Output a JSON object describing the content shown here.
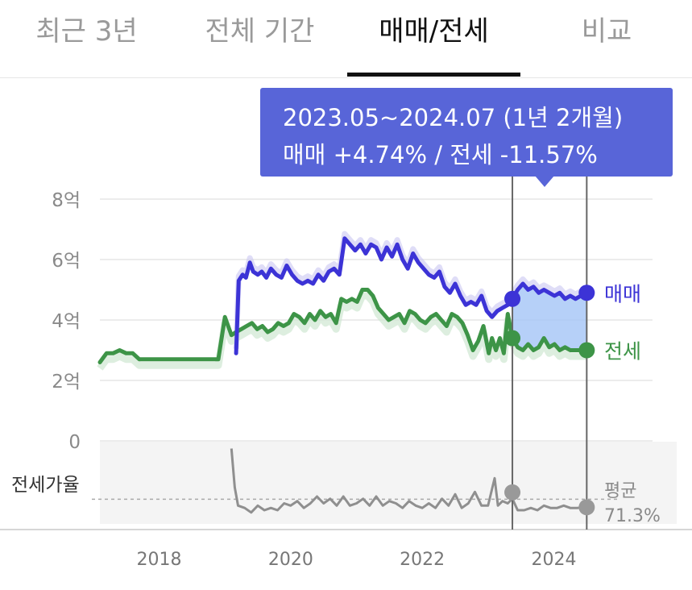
{
  "tabs": [
    {
      "label": "최근 3년",
      "active": false
    },
    {
      "label": "전체 기간",
      "active": false
    },
    {
      "label": "매매/전세",
      "active": true
    },
    {
      "label": "비교",
      "active": false
    }
  ],
  "tooltip": {
    "period": "2023.05~2024.07 (1년 2개월)",
    "change": "매매 +4.74%  /  전세 -11.57%"
  },
  "colors": {
    "sale": "#3c33d6",
    "jeonse": "#3d9447",
    "ratio": "#8f8f8f",
    "accent": "#5865d8",
    "highlight": "#9ec0f5"
  },
  "chart_data": {
    "type": "line",
    "x_range": [
      2017.1,
      2025.5
    ],
    "xticks": [
      "2018",
      "2020",
      "2022",
      "2024"
    ],
    "xtick_values": [
      2018,
      2020,
      2022,
      2024
    ],
    "ylim": [
      0,
      8
    ],
    "yticks": [
      "0",
      "2억",
      "4억",
      "6억",
      "8억"
    ],
    "ytick_values": [
      0,
      2,
      4,
      6,
      8
    ],
    "grid": true,
    "selection": {
      "start": 2023.37,
      "end": 2024.5
    },
    "series": [
      {
        "key": "sale",
        "name": "매매",
        "x": [
          2019.17,
          2019.21,
          2019.27,
          2019.32,
          2019.38,
          2019.43,
          2019.5,
          2019.56,
          2019.63,
          2019.7,
          2019.78,
          2019.86,
          2019.94,
          2020.02,
          2020.1,
          2020.18,
          2020.26,
          2020.34,
          2020.42,
          2020.5,
          2020.58,
          2020.66,
          2020.74,
          2020.82,
          2020.9,
          2020.98,
          2021.06,
          2021.14,
          2021.22,
          2021.3,
          2021.38,
          2021.46,
          2021.54,
          2021.62,
          2021.7,
          2021.78,
          2021.86,
          2021.94,
          2022.02,
          2022.1,
          2022.18,
          2022.26,
          2022.34,
          2022.42,
          2022.5,
          2022.58,
          2022.66,
          2022.74,
          2022.82,
          2022.9,
          2022.98,
          2023.06,
          2023.14,
          2023.22,
          2023.3,
          2023.37,
          2023.45,
          2023.53,
          2023.61,
          2023.69,
          2023.77,
          2023.85,
          2023.93,
          2024.01,
          2024.09,
          2024.17,
          2024.25,
          2024.33,
          2024.41,
          2024.5
        ],
        "y": [
          2.9,
          5.3,
          5.5,
          5.4,
          5.9,
          5.6,
          5.5,
          5.6,
          5.4,
          5.7,
          5.5,
          5.4,
          5.8,
          5.5,
          5.3,
          5.2,
          5.3,
          5.2,
          5.5,
          5.3,
          5.6,
          5.7,
          5.5,
          6.7,
          6.5,
          6.3,
          6.5,
          6.2,
          6.5,
          6.4,
          6.0,
          6.4,
          6.1,
          6.5,
          6.0,
          5.7,
          6.2,
          5.9,
          5.7,
          5.5,
          5.4,
          5.6,
          5.1,
          4.9,
          5.2,
          4.8,
          4.5,
          4.6,
          4.5,
          4.8,
          4.3,
          4.1,
          4.3,
          4.4,
          4.5,
          4.7,
          5.0,
          5.2,
          5.0,
          5.1,
          4.9,
          5.0,
          4.9,
          4.8,
          4.9,
          4.7,
          4.8,
          4.7,
          4.8,
          4.9
        ]
      },
      {
        "key": "jeonse",
        "name": "전세",
        "x": [
          2017.1,
          2017.2,
          2017.3,
          2017.4,
          2017.5,
          2017.6,
          2017.7,
          2017.8,
          2017.9,
          2018.0,
          2018.2,
          2018.4,
          2018.6,
          2018.8,
          2018.9,
          2019.0,
          2019.1,
          2019.17,
          2019.25,
          2019.33,
          2019.41,
          2019.49,
          2019.57,
          2019.65,
          2019.73,
          2019.81,
          2019.89,
          2019.97,
          2020.05,
          2020.13,
          2020.21,
          2020.29,
          2020.37,
          2020.45,
          2020.53,
          2020.61,
          2020.69,
          2020.77,
          2020.85,
          2020.93,
          2021.01,
          2021.09,
          2021.17,
          2021.25,
          2021.33,
          2021.41,
          2021.49,
          2021.57,
          2021.65,
          2021.73,
          2021.81,
          2021.89,
          2021.97,
          2022.05,
          2022.13,
          2022.21,
          2022.29,
          2022.37,
          2022.45,
          2022.53,
          2022.61,
          2022.69,
          2022.77,
          2022.85,
          2022.93,
          2023.01,
          2023.06,
          2023.12,
          2023.18,
          2023.24,
          2023.3,
          2023.37,
          2023.45,
          2023.53,
          2023.61,
          2023.69,
          2023.77,
          2023.85,
          2023.93,
          2024.01,
          2024.09,
          2024.17,
          2024.25,
          2024.33,
          2024.41,
          2024.5
        ],
        "y": [
          2.6,
          2.9,
          2.9,
          3.0,
          2.9,
          2.9,
          2.7,
          2.7,
          2.7,
          2.7,
          2.7,
          2.7,
          2.7,
          2.7,
          2.7,
          4.1,
          3.5,
          3.6,
          3.7,
          3.8,
          3.9,
          3.7,
          3.8,
          3.6,
          3.7,
          3.9,
          3.8,
          3.9,
          4.2,
          4.1,
          3.9,
          4.2,
          4.0,
          4.3,
          4.1,
          4.2,
          3.9,
          4.7,
          4.6,
          4.7,
          4.6,
          5.0,
          5.0,
          4.8,
          4.4,
          4.2,
          4.0,
          4.1,
          4.2,
          3.9,
          4.3,
          4.2,
          4.0,
          3.9,
          4.1,
          4.2,
          4.0,
          3.8,
          4.2,
          4.1,
          3.9,
          3.5,
          3.0,
          3.3,
          3.8,
          2.9,
          3.4,
          3.0,
          3.4,
          2.9,
          4.2,
          3.4,
          3.1,
          3.0,
          3.2,
          3.0,
          3.1,
          3.4,
          3.1,
          3.2,
          3.0,
          3.1,
          3.0,
          3.0,
          3.0,
          3.0
        ]
      },
      {
        "key": "ratio",
        "name": "전세가율",
        "x": [
          2019.1,
          2019.15,
          2019.2,
          2019.3,
          2019.4,
          2019.5,
          2019.6,
          2019.7,
          2019.8,
          2019.9,
          2020.0,
          2020.1,
          2020.2,
          2020.3,
          2020.4,
          2020.5,
          2020.6,
          2020.7,
          2020.8,
          2020.9,
          2021.0,
          2021.1,
          2021.2,
          2021.3,
          2021.4,
          2021.5,
          2021.6,
          2021.7,
          2021.8,
          2021.9,
          2022.0,
          2022.1,
          2022.2,
          2022.3,
          2022.4,
          2022.5,
          2022.6,
          2022.7,
          2022.8,
          2022.9,
          2023.0,
          2023.1,
          2023.15,
          2023.22,
          2023.3,
          2023.37,
          2023.45,
          2023.55,
          2023.65,
          2023.75,
          2023.85,
          2023.95,
          2024.05,
          2024.15,
          2024.25,
          2024.35,
          2024.5
        ],
        "y": [
          97,
          80,
          72,
          71,
          69,
          72,
          70,
          71,
          70,
          73,
          72,
          74,
          71,
          73,
          76,
          73,
          75,
          72,
          76,
          72,
          73,
          75,
          72,
          76,
          72,
          74,
          73,
          71,
          74,
          72,
          71,
          73,
          71,
          75,
          72,
          77,
          71,
          73,
          78,
          72,
          72,
          84,
          72,
          74,
          73,
          75,
          70,
          70,
          71,
          70,
          72,
          71,
          71,
          72,
          71,
          71,
          71.3
        ]
      }
    ],
    "end_labels": {
      "sale": "매매",
      "jeonse": "전세"
    },
    "ratio_label": "전세가율",
    "ratio_avg_label": "평균",
    "ratio_avg_value": "71.3%"
  }
}
